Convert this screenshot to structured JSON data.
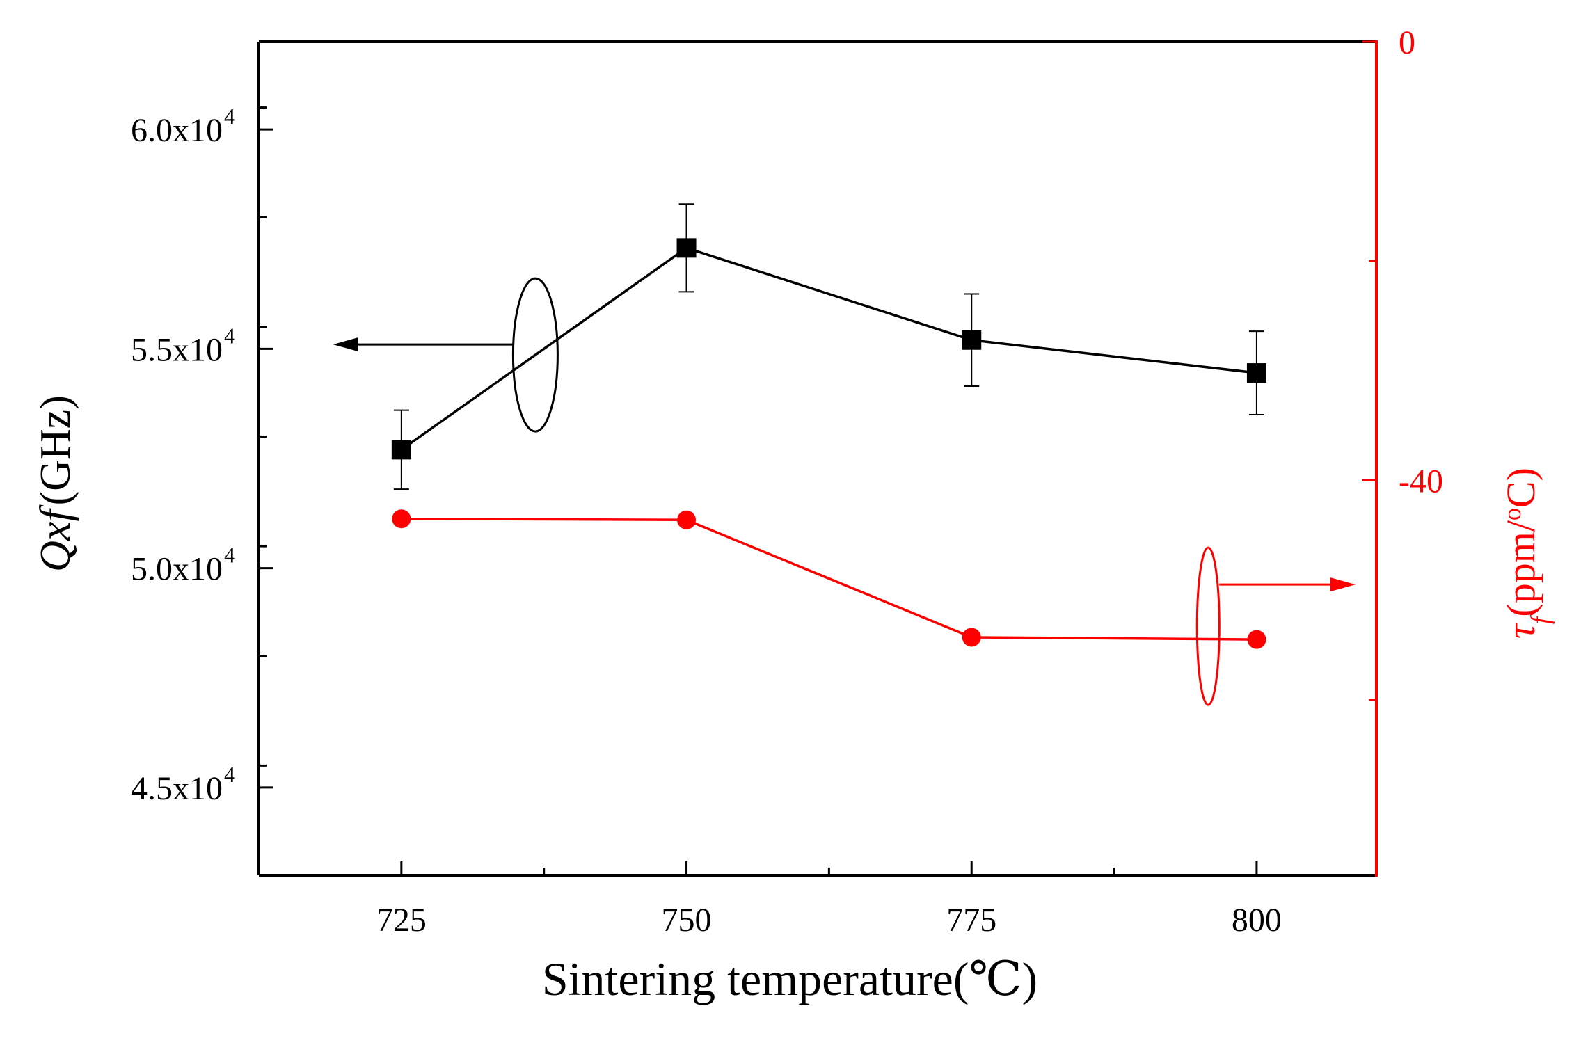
{
  "chart_data": {
    "type": "line",
    "title": "",
    "xlabel": "Sintering temperature(℃)",
    "x": [
      725,
      750,
      775,
      800
    ],
    "xlim": [
      712.5,
      810.5
    ],
    "xticks": [
      725,
      750,
      775,
      800
    ],
    "xtick_labels": [
      "725",
      "750",
      "775",
      "800"
    ],
    "y_left": {
      "label_main": "Qxf",
      "label_unit": "(GHz)",
      "ylim": [
        43000,
        62000
      ],
      "ticks": [
        45000,
        50000,
        55000,
        60000
      ],
      "tick_mantissas": [
        "4.5x10",
        "5.0x10",
        "5.5x10",
        "6.0x10"
      ],
      "tick_exponent": "4",
      "color": "#000000"
    },
    "y_right": {
      "label_symbol": "τ",
      "label_subscript": "f",
      "label_unit_pre": "(ppm/",
      "label_unit_sup": "o",
      "label_unit_post": "C)",
      "ylim": [
        -76,
        0
      ],
      "ticks": [
        0,
        -40
      ],
      "tick_labels": [
        "0",
        "-40"
      ],
      "minor_ticks": [
        -20,
        -60
      ],
      "color": "#ff0000"
    },
    "series": [
      {
        "name": "Qxf",
        "axis": "left",
        "marker": "square",
        "color": "#000000",
        "values": [
          52700,
          57300,
          55200,
          54450
        ],
        "error": [
          900,
          1000,
          1050,
          950
        ]
      },
      {
        "name": "τf",
        "axis": "right",
        "marker": "circle",
        "color": "#ff0000",
        "values": [
          -43.5,
          -43.6,
          -54.3,
          -54.5
        ]
      }
    ],
    "annotations": [
      {
        "type": "ellipse-arrow",
        "series": "Qxf",
        "direction": "left",
        "points_to": "left axis"
      },
      {
        "type": "ellipse-arrow",
        "series": "τf",
        "direction": "right",
        "points_to": "right axis"
      }
    ]
  }
}
